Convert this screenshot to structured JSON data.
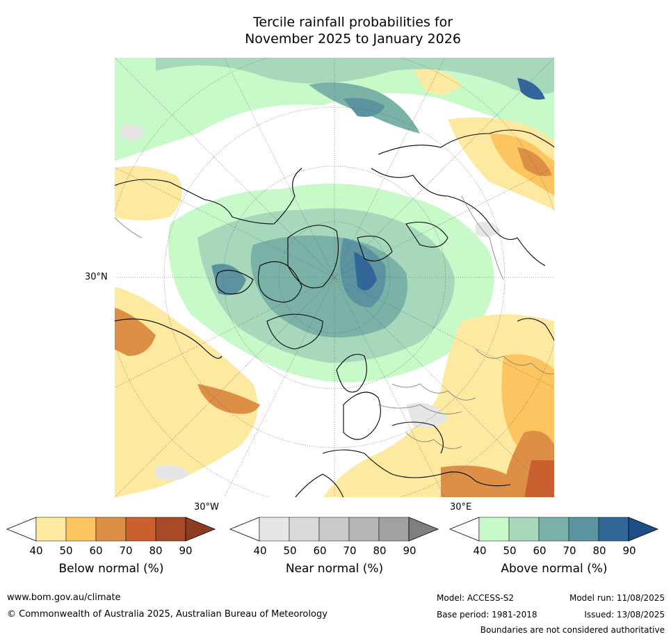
{
  "title": {
    "line1": "Tercile rainfall probabilities for",
    "line2": "November 2025 to January 2026"
  },
  "map": {
    "labels": {
      "lat_30n": "30°N",
      "lon_30w": "30°W",
      "lon_30e": "30°E"
    }
  },
  "colorbars": [
    {
      "label": "Below normal (%)",
      "ticks": [
        "40",
        "50",
        "60",
        "70",
        "80",
        "90"
      ],
      "colors": [
        "#ffffff",
        "#fee9a0",
        "#fdc55f",
        "#dd8f45",
        "#c8602f",
        "#a84a28",
        "#8c3d20"
      ]
    },
    {
      "label": "Near normal (%)",
      "ticks": [
        "40",
        "50",
        "60",
        "70",
        "80",
        "90"
      ],
      "colors": [
        "#ffffff",
        "#e6e6e6",
        "#d9d9d9",
        "#c9c9c9",
        "#b5b5b5",
        "#a1a1a1",
        "#7f7f7f"
      ]
    },
    {
      "label": "Above normal (%)",
      "ticks": [
        "40",
        "50",
        "60",
        "70",
        "80",
        "90"
      ],
      "colors": [
        "#ffffff",
        "#c8f9c8",
        "#a7d8bb",
        "#7bb2a7",
        "#5b93a0",
        "#336698",
        "#1d4f86"
      ]
    }
  ],
  "footer": {
    "website": "www.bom.gov.au/climate",
    "copyright": "© Commonwealth of Australia 2025, Australian Bureau of Meteorology",
    "model": "Model: ACCESS-S2",
    "base_period": "Base period: 1981-2018",
    "model_run": "Model run: 11/08/2025",
    "issued": "Issued: 13/08/2025",
    "disclaimer": "Boundaries are not considered authoritative"
  }
}
